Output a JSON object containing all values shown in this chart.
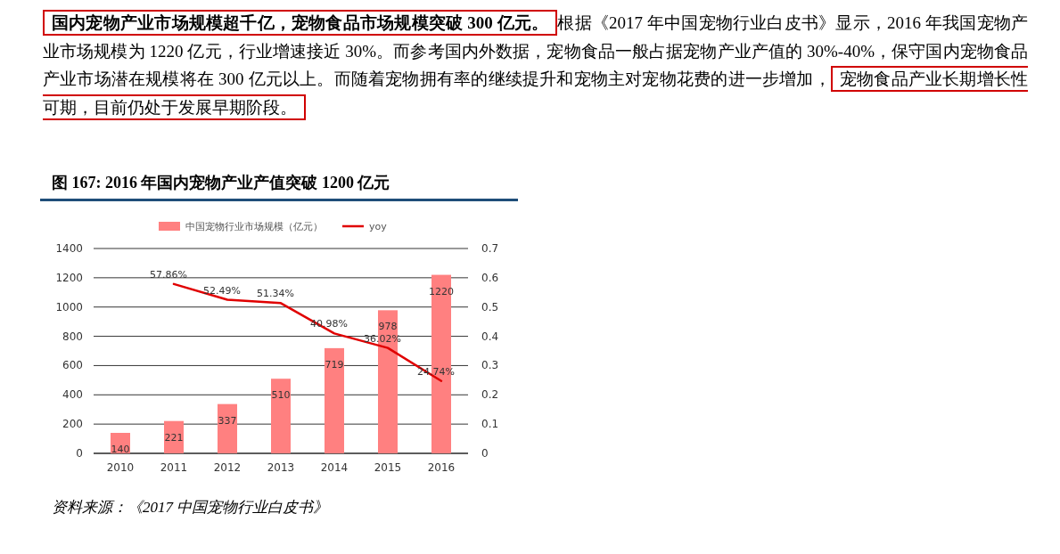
{
  "chart_data": {
    "type": "bar",
    "title": "图 167: 2016 年国内宠物产业产值突破 1200 亿元",
    "categories": [
      "2010",
      "2011",
      "2012",
      "2013",
      "2014",
      "2015",
      "2016"
    ],
    "series": [
      {
        "name": "中国宠物行业市场规模（亿元）",
        "color": "#ff8080",
        "values": [
          140,
          221,
          337,
          510,
          719,
          978,
          1220
        ]
      },
      {
        "name": "yoy",
        "type": "line",
        "axis": "y2",
        "color": "#e00000",
        "values": [
          null,
          0.5786,
          0.5249,
          0.5134,
          0.4098,
          0.3602,
          0.2474
        ],
        "value_labels": [
          null,
          "57.86%",
          "52.49%",
          "51.34%",
          "40.98%",
          "36.02%",
          "24.74%"
        ]
      }
    ],
    "data_labels": true,
    "ylim": [
      0,
      1400
    ],
    "yticks": [
      0,
      200,
      400,
      600,
      800,
      1000,
      1200,
      1400
    ],
    "y2lim": [
      0,
      0.7
    ],
    "y2ticks": [
      0,
      0.1,
      0.2,
      0.3,
      0.4,
      0.5,
      0.6,
      0.7
    ],
    "grid": "y",
    "legend": "top",
    "marker": "none",
    "annotations": [
      "国内宠物产业市场规模超千亿，宠物食品市场规模突破 300 亿元。",
      "根据《2017 年中国宠物行业白皮书》显示，2016 年我国宠物产业市场规模为 1220 亿元，行业增速接近 30%。而参考国内外数据，宠物食品一般占据宠物产业产值的 30%-40%，保守国内宠物食品产业市场潜在规模将在 300 亿元以上。而随着宠物拥有率的继续提升和宠物主对宠物花费的进一步增加，",
      "宠物食品产业长期增长性可期，目前仍处于发展早期阶段。",
      "资料来源：《2017 中国宠物行业白皮书》"
    ]
  }
}
